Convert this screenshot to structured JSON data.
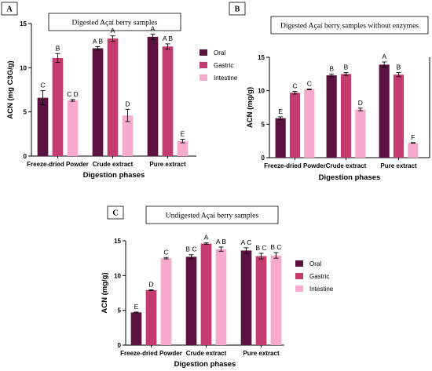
{
  "colors": {
    "Oral": "#5c1240",
    "Gastric": "#c43b6e",
    "Intestine": "#f7aacb"
  },
  "chart_data": [
    {
      "panel": "A",
      "type": "bar",
      "title": "Digested Açaí berry samples",
      "ylabel": "ACN (mg C3G/g)",
      "xlabel": "Digestion phases",
      "ylim": [
        0,
        15
      ],
      "yticks": [
        0,
        5,
        10,
        15
      ],
      "legend": "right",
      "categories": [
        "Freeze-dried Powder",
        "Crude extract",
        "Pure extract"
      ],
      "series": [
        {
          "name": "Oral",
          "values": [
            6.6,
            12.2,
            13.5
          ],
          "errors": [
            0.8,
            0.2,
            0.3
          ],
          "labels": [
            "C",
            "A B",
            "A"
          ]
        },
        {
          "name": "Gastric",
          "values": [
            11.1,
            13.3,
            12.4
          ],
          "errors": [
            0.5,
            0.3,
            0.3
          ],
          "labels": [
            "B",
            "A",
            "A B"
          ]
        },
        {
          "name": "Intestine",
          "values": [
            6.3,
            4.6,
            1.7
          ],
          "errors": [
            0.1,
            0.7,
            0.2
          ],
          "labels": [
            "C D",
            "D",
            "E"
          ]
        }
      ]
    },
    {
      "panel": "B",
      "type": "bar",
      "title": "Digested Açaí berry samples without enzymes",
      "ylabel": "ACN (mg/g)",
      "xlabel": "Digestion phases",
      "ylim": [
        0,
        15
      ],
      "yticks": [
        0,
        5,
        10,
        15
      ],
      "legend": "none",
      "categories": [
        "Freeze-dried Powder",
        "Crude extract",
        "Pure extract"
      ],
      "series": [
        {
          "name": "Oral",
          "values": [
            5.9,
            12.3,
            13.9
          ],
          "errors": [
            0.2,
            0.2,
            0.4
          ],
          "labels": [
            "E",
            "B",
            "A"
          ]
        },
        {
          "name": "Gastric",
          "values": [
            9.7,
            12.5,
            12.4
          ],
          "errors": [
            0.2,
            0.2,
            0.3
          ],
          "labels": [
            "C",
            "B",
            "B"
          ]
        },
        {
          "name": "Intestine",
          "values": [
            10.2,
            7.2,
            2.2
          ],
          "errors": [
            0.05,
            0.2,
            0.05
          ],
          "labels": [
            "C",
            "D",
            "F"
          ]
        }
      ]
    },
    {
      "panel": "C",
      "type": "bar",
      "title": "Undigested Açaí berry samples",
      "ylabel": "ACN (mg/g)",
      "xlabel": "Digestion phases",
      "ylim": [
        0,
        15
      ],
      "yticks": [
        0,
        5,
        10,
        15
      ],
      "legend": "right",
      "categories": [
        "Freeze-dried Powder",
        "Crude extract",
        "Pure extract"
      ],
      "series": [
        {
          "name": "Oral",
          "values": [
            4.7,
            12.7,
            13.6
          ],
          "errors": [
            0.05,
            0.3,
            0.4
          ],
          "labels": [
            "E",
            "B C",
            "A C"
          ]
        },
        {
          "name": "Gastric",
          "values": [
            7.9,
            14.6,
            12.8
          ],
          "errors": [
            0.05,
            0.1,
            0.4
          ],
          "labels": [
            "D",
            "A",
            "B C"
          ]
        },
        {
          "name": "Intestine",
          "values": [
            12.5,
            13.8,
            12.9
          ],
          "errors": [
            0.1,
            0.3,
            0.4
          ],
          "labels": [
            "C",
            "A B",
            "B C"
          ]
        }
      ]
    }
  ]
}
